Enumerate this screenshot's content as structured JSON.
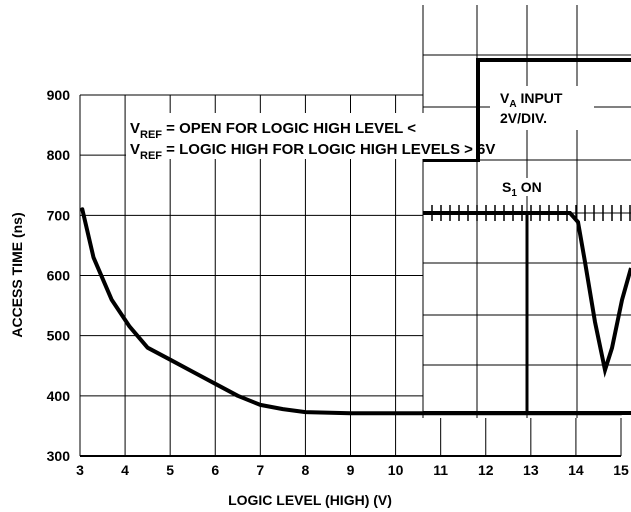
{
  "chart_data": {
    "type": "line",
    "xlabel": "LOGIC LEVEL (HIGH) (V)",
    "ylabel": "ACCESS TIME (ns)",
    "xlim": [
      3,
      15
    ],
    "ylim": [
      300,
      900
    ],
    "x_ticks": [
      "3",
      "4",
      "5",
      "6",
      "7",
      "8",
      "9",
      "10",
      "11",
      "12",
      "13",
      "14",
      "15"
    ],
    "y_ticks": [
      "300",
      "400",
      "500",
      "600",
      "700",
      "800",
      "900"
    ],
    "grid": true,
    "series": [
      {
        "x": [
          3.05,
          3.3,
          3.7,
          4.1,
          4.5,
          5.0,
          5.5,
          6.0,
          6.5,
          7.0,
          7.5,
          8.0,
          9.0,
          10.0,
          11.0,
          12.0,
          13.0,
          14.0,
          15.0
        ],
        "y": [
          710,
          630,
          560,
          515,
          480,
          460,
          440,
          420,
          400,
          385,
          378,
          373,
          371,
          371,
          371,
          371,
          371,
          371,
          371
        ]
      }
    ],
    "annotations": {
      "vref_open": "OPEN FOR LOGIC HIGH LEVEL <",
      "vref_logic": "LOGIC HIGH FOR LOGIC HIGH LEVELS > 6V",
      "vref_main": "V",
      "vref_sub": "REF",
      "vref_sep": " = "
    },
    "inset": {
      "va_main": "V",
      "va_sub": "A",
      "va_label": " INPUT",
      "va_scale": "2V/DIV.",
      "s1_main": "S",
      "s1_sub": "1",
      "s1_label": " ON"
    }
  }
}
